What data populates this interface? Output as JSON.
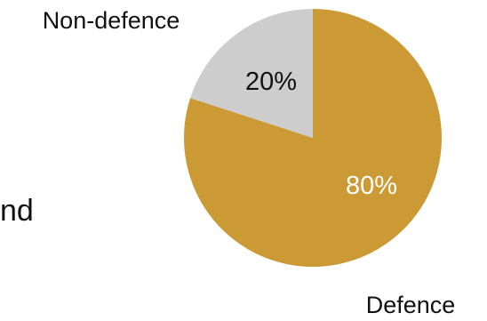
{
  "chart_data": {
    "type": "pie",
    "slices": [
      {
        "label": "Defence",
        "value": 80,
        "percent_label": "80%",
        "color": "#CC9A35",
        "label_color": "#FFFFFF"
      },
      {
        "label": "Non-defence",
        "value": 20,
        "percent_label": "20%",
        "color": "#CDCDCD",
        "label_color": "#111111"
      }
    ]
  },
  "background_text": {
    "partial_word": "nd"
  }
}
